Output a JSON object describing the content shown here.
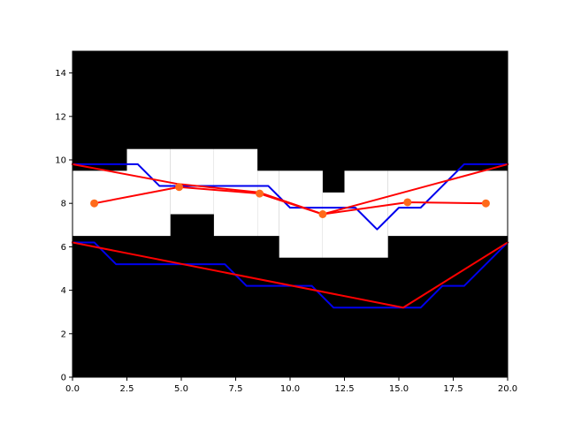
{
  "chart_data": {
    "type": "line",
    "title": "",
    "xlabel": "",
    "ylabel": "",
    "xlim": [
      0,
      20
    ],
    "ylim": [
      0,
      15
    ],
    "xticks": [
      0,
      2.5,
      5,
      7.5,
      10,
      12.5,
      15,
      17.5,
      20
    ],
    "xtick_labels": [
      "0.0",
      "2.5",
      "5.0",
      "7.5",
      "10.0",
      "12.5",
      "15.0",
      "17.5",
      "20.0"
    ],
    "yticks": [
      0,
      2,
      4,
      6,
      8,
      10,
      12,
      14
    ],
    "ytick_labels": [
      "0",
      "2",
      "4",
      "6",
      "8",
      "10",
      "12",
      "14"
    ],
    "grid": false,
    "background": {
      "type": "heatmap",
      "description_colors": [
        "#000000",
        "#ffffff"
      ],
      "free_regions": [
        {
          "x": [
            0,
            2.5
          ],
          "y": [
            6.5,
            9.5
          ]
        },
        {
          "x": [
            2.5,
            4.5
          ],
          "y": [
            6.5,
            10.5
          ]
        },
        {
          "x": [
            4.5,
            6.5
          ],
          "y": [
            7.5,
            10.5
          ]
        },
        {
          "x": [
            6.5,
            8.5
          ],
          "y": [
            6.5,
            10.5
          ]
        },
        {
          "x": [
            8.5,
            9.5
          ],
          "y": [
            6.5,
            9.5
          ]
        },
        {
          "x": [
            9.5,
            11.5
          ],
          "y": [
            5.5,
            9.5
          ]
        },
        {
          "x": [
            11.5,
            12.5
          ],
          "y": [
            5.5,
            8.5
          ]
        },
        {
          "x": [
            12.5,
            14.5
          ],
          "y": [
            5.5,
            9.5
          ]
        },
        {
          "x": [
            14.5,
            20
          ],
          "y": [
            6.5,
            9.5
          ]
        }
      ]
    },
    "series": [
      {
        "type": "line",
        "color": "#0000ee",
        "x": [
          0,
          3,
          4,
          8,
          9,
          10,
          11,
          12,
          13,
          14,
          15,
          16,
          17,
          18,
          19,
          20
        ],
        "y": [
          9.8,
          9.8,
          8.8,
          8.8,
          8.8,
          7.8,
          7.8,
          7.8,
          7.8,
          6.8,
          7.8,
          7.8,
          8.8,
          9.8,
          9.8,
          9.8
        ]
      },
      {
        "type": "line",
        "color": "#0000ee",
        "x": [
          0,
          1,
          2,
          7,
          8,
          11,
          12,
          15,
          16,
          17,
          18,
          20
        ],
        "y": [
          6.2,
          6.2,
          5.2,
          5.2,
          4.2,
          4.2,
          3.2,
          3.2,
          3.2,
          4.2,
          4.2,
          6.2
        ]
      },
      {
        "type": "line",
        "color": "#ff0000",
        "x": [
          0,
          4.8,
          8.6,
          11.5,
          20
        ],
        "y": [
          9.8,
          8.9,
          8.5,
          7.5,
          9.8
        ]
      },
      {
        "type": "line",
        "color": "#ff0000",
        "x": [
          0,
          15.2,
          20
        ],
        "y": [
          6.2,
          3.2,
          6.2
        ]
      },
      {
        "type": "line",
        "color": "#ff0000",
        "x": [
          1,
          4.9,
          8.6,
          11.5,
          15.4,
          19
        ],
        "y": [
          8,
          8.75,
          8.45,
          7.5,
          8.05,
          8
        ]
      },
      {
        "type": "scatter",
        "color": "#ff6a1a",
        "x": [
          1,
          4.9,
          8.6,
          11.5,
          15.4,
          19
        ],
        "y": [
          8,
          8.75,
          8.45,
          7.5,
          8.05,
          8
        ]
      }
    ]
  }
}
